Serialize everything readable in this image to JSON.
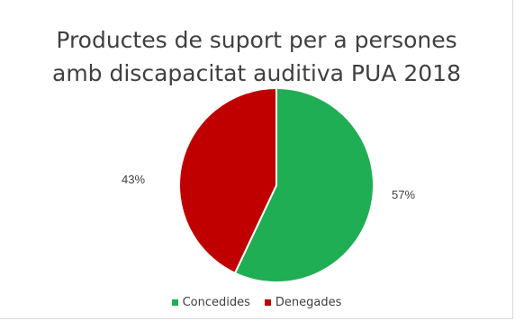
{
  "chart_data": {
    "type": "pie",
    "title_lines": [
      "Productes de suport per a persones",
      "amb discapacitat auditiva PUA 2018"
    ],
    "categories": [
      "Concedides",
      "Denegades"
    ],
    "values": [
      57,
      43
    ],
    "labels": [
      "57%",
      "43%"
    ],
    "colors": [
      "#1fae53",
      "#c00000"
    ],
    "legend_position": "bottom"
  }
}
